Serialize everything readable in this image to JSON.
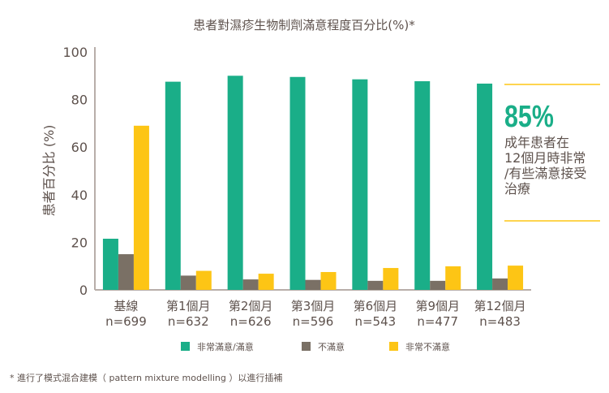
{
  "chart_data": {
    "type": "bar",
    "title": "患者對濕疹生物制劑滿意程度百分比(%)*",
    "ylabel": "患者百分比 (%)",
    "xlabel": "",
    "ylim": [
      0,
      100
    ],
    "yticks": [
      0,
      20,
      40,
      60,
      80,
      100
    ],
    "categories": [
      {
        "label": "基線",
        "n": "n=699"
      },
      {
        "label": "第1個月",
        "n": "n=632"
      },
      {
        "label": "第2個月",
        "n": "n=626"
      },
      {
        "label": "第3個月",
        "n": "n=596"
      },
      {
        "label": "第6個月",
        "n": "n=543"
      },
      {
        "label": "第9個月",
        "n": "n=477"
      },
      {
        "label": "第12個月",
        "n": "n=483"
      }
    ],
    "series": [
      {
        "name": "非常滿意/滿意",
        "color": "#1aae88",
        "values": [
          21.5,
          87.5,
          90,
          89.5,
          88.5,
          87.7,
          86.7
        ]
      },
      {
        "name": "不滿意",
        "color": "#7a7065",
        "values": [
          15,
          6,
          4.4,
          4.2,
          3.8,
          3.8,
          4.8
        ]
      },
      {
        "name": "非常不滿意",
        "color": "#fdc515",
        "values": [
          69,
          8,
          6.8,
          7.5,
          9.2,
          9.9,
          10.2
        ]
      }
    ],
    "legend_position": "bottom",
    "grid": false
  },
  "callout": {
    "value": "85%",
    "lines": [
      "成年患者在",
      "12個月時非常",
      "/有些滿意接受",
      "治療"
    ]
  },
  "footnote": "* 進行了模式混合建模（ pattern mixture modelling ）以進行插補"
}
